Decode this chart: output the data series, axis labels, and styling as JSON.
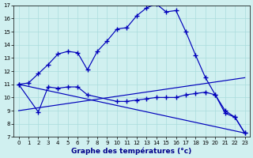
{
  "xlabel": "Graphe des températures (°c)",
  "bg_color": "#d0f0f0",
  "line_color": "#0000bb",
  "xlim": [
    -0.5,
    23.5
  ],
  "ylim": [
    7,
    17
  ],
  "yticks": [
    7,
    8,
    9,
    10,
    11,
    12,
    13,
    14,
    15,
    16,
    17
  ],
  "xticks": [
    0,
    1,
    2,
    3,
    4,
    5,
    6,
    7,
    8,
    9,
    10,
    11,
    12,
    13,
    14,
    15,
    16,
    17,
    18,
    19,
    20,
    21,
    22,
    23
  ],
  "line1_x": [
    0,
    1,
    2,
    3,
    4,
    5,
    6,
    7,
    8,
    9,
    10,
    11,
    12,
    13,
    14,
    15,
    16,
    17,
    18,
    19,
    20,
    21,
    22,
    23
  ],
  "line1_y": [
    11.0,
    11.1,
    11.8,
    12.5,
    13.3,
    13.5,
    13.4,
    12.1,
    13.5,
    14.3,
    15.2,
    15.3,
    16.2,
    16.8,
    17.1,
    16.5,
    16.6,
    15.0,
    13.2,
    11.5,
    10.2,
    8.8,
    8.5,
    7.3
  ],
  "line2_x": [
    0,
    2,
    3,
    4,
    5,
    6,
    7,
    10,
    11,
    12,
    13,
    14,
    15,
    16,
    17,
    18,
    19,
    20,
    21,
    22,
    23
  ],
  "line2_y": [
    11.0,
    8.9,
    10.8,
    10.7,
    10.8,
    10.8,
    10.2,
    9.7,
    9.7,
    9.8,
    9.9,
    10.0,
    10.0,
    10.0,
    10.2,
    10.3,
    10.4,
    10.2,
    9.0,
    8.5,
    7.3
  ],
  "line3_x": [
    0,
    23
  ],
  "line3_y": [
    11.0,
    7.3
  ],
  "line4_x": [
    0,
    23
  ],
  "line4_y": [
    9.0,
    11.5
  ]
}
